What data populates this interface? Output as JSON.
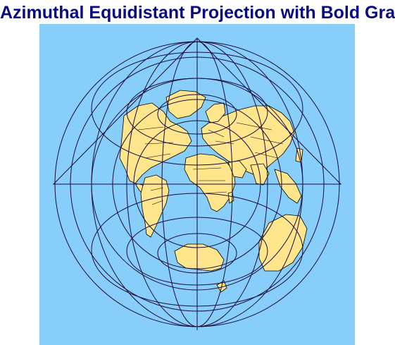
{
  "map": {
    "title": "Azimuthal Equidistant Projection with Bold Graticule",
    "projection": "azimuthal-equidistant",
    "colors": {
      "title": "#0a0a82",
      "ocean": "#87cefa",
      "land": "#ffe68c",
      "border": "#000000",
      "graticule": "#1a0a3a"
    }
  }
}
